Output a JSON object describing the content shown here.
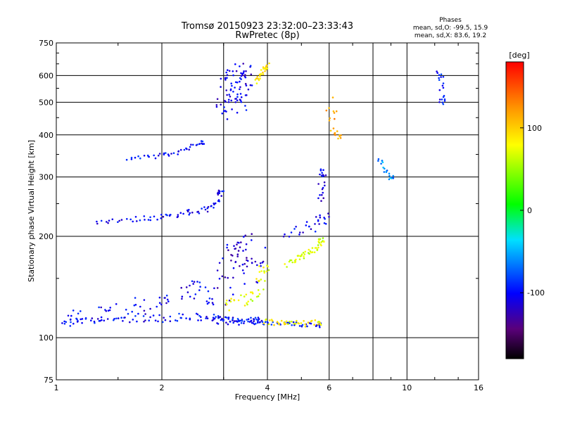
{
  "chart_data": {
    "type": "scatter",
    "title": "Tromsø 20150923 23:32:00–23:33:43",
    "subtitle": "RwPretec (8p)",
    "xlabel": "Frequency [MHz]",
    "ylabel": "Stationary phase Virtual Height [km]",
    "x_scale": "log",
    "y_scale": "log",
    "xlim": [
      1,
      16
    ],
    "ylim": [
      75,
      750
    ],
    "x_ticks": [
      1,
      2,
      4,
      6,
      10,
      16
    ],
    "x_tick_labels": [
      "1",
      "2",
      "4",
      "6",
      "10",
      "16"
    ],
    "x_grid": [
      2,
      3,
      4,
      6,
      8,
      10
    ],
    "y_ticks": [
      75,
      100,
      200,
      300,
      400,
      500,
      600,
      750
    ],
    "y_tick_labels": [
      "75",
      "100",
      "200",
      "300",
      "400",
      "500",
      "600",
      "750"
    ],
    "grid": true,
    "phase_stats": {
      "title": "Phases",
      "o_line": "mean, sd,O: -99.5, 15.9",
      "x_line": "mean, sd,X: 83.6, 19.2"
    },
    "colorbar": {
      "label": "[deg]",
      "range": [
        -180,
        180
      ],
      "ticks": [
        100,
        0,
        -100
      ],
      "tick_labels": [
        "100",
        "0",
        "-100"
      ]
    },
    "traces": [
      {
        "x": [
          1.0,
          1.1,
          1.25,
          1.4,
          1.6,
          1.8,
          2.0,
          2.2,
          2.45,
          2.7,
          2.9,
          3.1,
          3.4,
          3.7
        ],
        "y": [
          110,
          111,
          112,
          113,
          113,
          114,
          114,
          115,
          115,
          114,
          113,
          112,
          112,
          112
        ],
        "phase": -100,
        "spread": 0.025
      },
      {
        "x": [
          1.05,
          1.2,
          1.35,
          1.5,
          1.7,
          1.9,
          2.1,
          2.3,
          2.5,
          2.7
        ],
        "y": [
          112,
          116,
          120,
          118,
          124,
          128,
          132,
          138,
          142,
          130
        ],
        "phase": -105,
        "spread": 0.06
      },
      {
        "x": [
          1.3,
          1.5,
          1.7,
          1.9,
          2.1,
          2.3,
          2.5,
          2.7,
          2.85,
          2.95
        ],
        "y": [
          220,
          224,
          225,
          228,
          230,
          234,
          238,
          242,
          250,
          270
        ],
        "phase": -105,
        "spread": 0.02
      },
      {
        "x": [
          1.6,
          1.8,
          2.0,
          2.2,
          2.4,
          2.6
        ],
        "y": [
          340,
          343,
          348,
          355,
          365,
          380
        ],
        "phase": -98,
        "spread": 0.015
      },
      {
        "x": [
          2.8,
          3.0,
          3.2,
          3.4,
          3.6,
          3.8,
          4.0,
          4.4,
          4.8,
          5.2,
          5.6
        ],
        "y": [
          116,
          114,
          113,
          112,
          112,
          111,
          111,
          110,
          110,
          109,
          109
        ],
        "phase": -98,
        "spread": 0.015
      },
      {
        "x": [
          2.95,
          3.0,
          3.05,
          3.1,
          3.15,
          3.2,
          3.25,
          3.3,
          3.35,
          3.4,
          3.45,
          3.5
        ],
        "y": [
          450,
          500,
          560,
          620,
          470,
          530,
          600,
          640,
          480,
          520,
          580,
          610
        ],
        "phase": -108,
        "spread": 0.05
      },
      {
        "x": [
          3.0,
          3.05,
          3.1,
          3.2,
          3.3,
          3.4,
          3.5,
          3.6,
          3.7
        ],
        "y": [
          130,
          150,
          170,
          190,
          160,
          180,
          200,
          150,
          175
        ],
        "phase": -115,
        "spread": 0.07
      },
      {
        "x": [
          3.1,
          3.3,
          3.5,
          3.7,
          3.8,
          3.9
        ],
        "y": [
          125,
          127,
          130,
          135,
          145,
          160
        ],
        "phase": 72,
        "spread": 0.04
      },
      {
        "x": [
          3.9,
          4.2,
          4.5,
          4.8,
          5.2,
          5.6
        ],
        "y": [
          112,
          111,
          110,
          110,
          110,
          111
        ],
        "phase": 80,
        "spread": 0.02
      },
      {
        "x": [
          4.5,
          4.8,
          5.0,
          5.2,
          5.4,
          5.6,
          5.7
        ],
        "y": [
          165,
          170,
          175,
          178,
          182,
          188,
          195
        ],
        "phase": 68,
        "spread": 0.02
      },
      {
        "x": [
          3.7,
          3.8,
          3.9,
          4.0
        ],
        "y": [
          580,
          600,
          620,
          640
        ],
        "phase": 88,
        "spread": 0.02
      },
      {
        "x": [
          4.6,
          5.0,
          5.5,
          5.8
        ],
        "y": [
          200,
          210,
          218,
          225
        ],
        "phase": -105,
        "spread": 0.04
      },
      {
        "x": [
          5.6,
          5.7,
          5.8
        ],
        "y": [
          250,
          280,
          310
        ],
        "phase": -110,
        "spread": 0.03
      },
      {
        "x": [
          6.0,
          6.2,
          6.4
        ],
        "y": [
          500,
          440,
          390
        ],
        "phase": 120,
        "spread": 0.04
      },
      {
        "x": [
          8.4,
          8.6,
          9.0
        ],
        "y": [
          340,
          320,
          300
        ],
        "phase": -60,
        "spread": 0.02
      },
      {
        "x": [
          12.4,
          12.5,
          12.6
        ],
        "y": [
          610,
          590,
          500
        ],
        "phase": -95,
        "spread": 0.02
      }
    ]
  }
}
